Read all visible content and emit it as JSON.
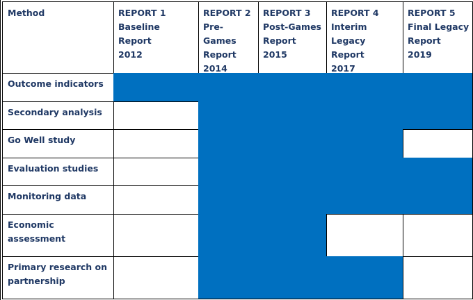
{
  "table": {
    "header": [
      [
        "Method"
      ],
      [
        "REPORT 1",
        "Baseline",
        "Report",
        "2012"
      ],
      [
        "REPORT 2",
        "Pre-",
        "Games",
        "Report",
        "2014"
      ],
      [
        "REPORT 3",
        "Post-Games",
        "Report",
        "2015"
      ],
      [
        "REPORT 4",
        "Interim",
        "Legacy",
        "Report",
        "2017"
      ],
      [
        "REPORT 5",
        "Final Legacy",
        "Report",
        "2019"
      ]
    ],
    "rows": [
      {
        "label": [
          "Outcome indicators"
        ],
        "filled": [
          true,
          true,
          true,
          true,
          true
        ]
      },
      {
        "label": [
          "Secondary analysis"
        ],
        "filled": [
          false,
          true,
          true,
          true,
          true
        ]
      },
      {
        "label": [
          "Go Well study"
        ],
        "filled": [
          false,
          true,
          true,
          true,
          false
        ]
      },
      {
        "label": [
          "Evaluation studies"
        ],
        "filled": [
          false,
          true,
          true,
          true,
          true
        ]
      },
      {
        "label": [
          "Monitoring data"
        ],
        "filled": [
          false,
          true,
          true,
          true,
          true
        ]
      },
      {
        "label": [
          "Economic",
          "assessment"
        ],
        "filled": [
          false,
          true,
          true,
          false,
          false
        ]
      },
      {
        "label": [
          "Primary research on",
          "partnership"
        ],
        "filled": [
          false,
          true,
          true,
          true,
          false
        ]
      }
    ],
    "fill_color": "#0070c0"
  }
}
